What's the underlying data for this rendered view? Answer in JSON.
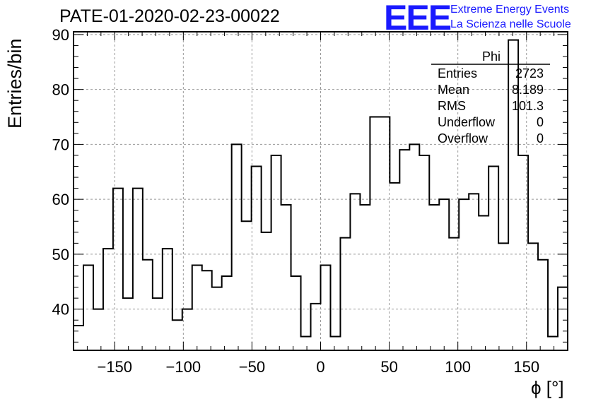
{
  "chart_data": {
    "type": "bar",
    "title": "PATE-01-2020-02-23-00022",
    "xlabel": "ϕ [°]",
    "ylabel": "Entries/bin",
    "xlim": [
      -180,
      180
    ],
    "ylim": [
      32.5,
      90.5
    ],
    "bin_width": 7.2,
    "x_ticks": [
      -150,
      -100,
      -50,
      0,
      50,
      100,
      150
    ],
    "x_tick_labels": [
      "−150",
      "−100",
      "−50",
      "0",
      "50",
      "100",
      "150"
    ],
    "y_ticks": [
      40,
      50,
      60,
      70,
      80,
      90
    ],
    "y_tick_labels": [
      "40",
      "50",
      "60",
      "70",
      "80",
      "90"
    ],
    "grid": true,
    "values": [
      37,
      48,
      40,
      51,
      62,
      42,
      62,
      49,
      42,
      51,
      38,
      40,
      48,
      47,
      44,
      46,
      70,
      56,
      66,
      54,
      68,
      59,
      46,
      35,
      41,
      48,
      35,
      53,
      61,
      59,
      75,
      75,
      63,
      69,
      70,
      68,
      59,
      60,
      53,
      60,
      61,
      57,
      66,
      52,
      89,
      68,
      52,
      49,
      35,
      44
    ],
    "stats": {
      "name": "Phi",
      "rows": [
        {
          "label": "Entries",
          "value": "2723"
        },
        {
          "label": "Mean",
          "value": "8.189"
        },
        {
          "label": "RMS",
          "value": "101.3"
        },
        {
          "label": "Underflow",
          "value": "0"
        },
        {
          "label": "Overflow",
          "value": "0"
        }
      ]
    }
  },
  "logo": {
    "mark": "EEE",
    "line1": "Extreme Energy Events",
    "line2": "La Scienza nelle Scuole"
  },
  "colors": {
    "line": "#000000",
    "grid": "#999999",
    "logo": "#1a1aff"
  }
}
